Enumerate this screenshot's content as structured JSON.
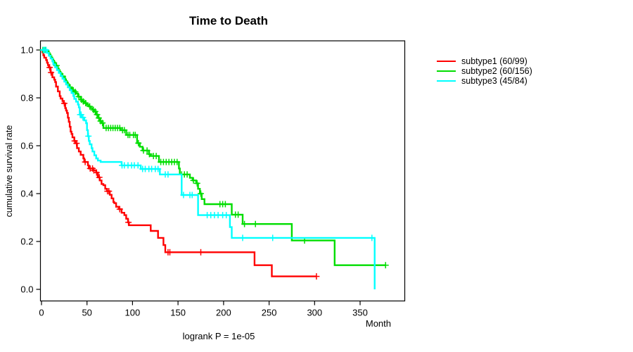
{
  "chart_data": {
    "type": "line",
    "subtype": "kaplan-meier-step-curves",
    "title": "Time to Death",
    "xlabel": "Month",
    "ylabel": "cumulative survival rate",
    "annotation": "logrank P = 1e-05",
    "grid": false,
    "legend_position": "right-outside",
    "xlim": [
      0,
      398
    ],
    "ylim": [
      0.0,
      1.0
    ],
    "x_ticks": [
      0,
      50,
      100,
      150,
      200,
      250,
      300,
      350
    ],
    "y_ticks": [
      0.0,
      0.2,
      0.4,
      0.6,
      0.8,
      1.0
    ],
    "series": [
      {
        "name": "subtype1 (60/99)",
        "events": 60,
        "n": 99,
        "color": "#ff0000",
        "end_month": 302,
        "points": [
          [
            0,
            1.0
          ],
          [
            1,
            0.99
          ],
          [
            2,
            0.978
          ],
          [
            3,
            0.968
          ],
          [
            5,
            0.958
          ],
          [
            6,
            0.947
          ],
          [
            7,
            0.937
          ],
          [
            8,
            0.927
          ],
          [
            10,
            0.906
          ],
          [
            12,
            0.886
          ],
          [
            14,
            0.876
          ],
          [
            15,
            0.866
          ],
          [
            16,
            0.847
          ],
          [
            18,
            0.827
          ],
          [
            20,
            0.807
          ],
          [
            21,
            0.797
          ],
          [
            23,
            0.787
          ],
          [
            24,
            0.777
          ],
          [
            26,
            0.757
          ],
          [
            27,
            0.747
          ],
          [
            28,
            0.737
          ],
          [
            29,
            0.717
          ],
          [
            30,
            0.7
          ],
          [
            31,
            0.679
          ],
          [
            32,
            0.659
          ],
          [
            33,
            0.649
          ],
          [
            34,
            0.635
          ],
          [
            36,
            0.62
          ],
          [
            38,
            0.61
          ],
          [
            39,
            0.59
          ],
          [
            41,
            0.576
          ],
          [
            43,
            0.562
          ],
          [
            46,
            0.547
          ],
          [
            47,
            0.532
          ],
          [
            51,
            0.518
          ],
          [
            52,
            0.505
          ],
          [
            57,
            0.497
          ],
          [
            60,
            0.488
          ],
          [
            62,
            0.468
          ],
          [
            64,
            0.455
          ],
          [
            66,
            0.44
          ],
          [
            68,
            0.435
          ],
          [
            70,
            0.42
          ],
          [
            72,
            0.41
          ],
          [
            75,
            0.395
          ],
          [
            77,
            0.38
          ],
          [
            79,
            0.365
          ],
          [
            80,
            0.36
          ],
          [
            82,
            0.345
          ],
          [
            85,
            0.335
          ],
          [
            88,
            0.32
          ],
          [
            91,
            0.31
          ],
          [
            93,
            0.295
          ],
          [
            95,
            0.28
          ],
          [
            96,
            0.268
          ],
          [
            120,
            0.244
          ],
          [
            128,
            0.215
          ],
          [
            134,
            0.185
          ],
          [
            136,
            0.155
          ],
          [
            234,
            0.101
          ],
          [
            253,
            0.054
          ]
        ],
        "censor_months": [
          9,
          10.5,
          25,
          36.5,
          38.5,
          48,
          53.5,
          56,
          57.5,
          60.5,
          63.5,
          72.5,
          74,
          86,
          95.5,
          139,
          141,
          175,
          302
        ]
      },
      {
        "name": "subtype2 (60/156)",
        "events": 60,
        "n": 156,
        "color": "#00dd00",
        "end_month": 378,
        "points": [
          [
            0,
            1.0
          ],
          [
            6,
            0.994
          ],
          [
            8,
            0.987
          ],
          [
            9,
            0.981
          ],
          [
            10,
            0.974
          ],
          [
            11,
            0.968
          ],
          [
            12,
            0.961
          ],
          [
            13,
            0.955
          ],
          [
            14,
            0.948
          ],
          [
            15,
            0.942
          ],
          [
            16,
            0.935
          ],
          [
            17,
            0.929
          ],
          [
            18,
            0.922
          ],
          [
            19,
            0.916
          ],
          [
            20,
            0.909
          ],
          [
            21,
            0.903
          ],
          [
            22,
            0.896
          ],
          [
            23,
            0.89
          ],
          [
            25,
            0.883
          ],
          [
            26,
            0.877
          ],
          [
            27,
            0.87
          ],
          [
            28,
            0.864
          ],
          [
            29,
            0.857
          ],
          [
            30,
            0.851
          ],
          [
            31,
            0.844
          ],
          [
            33,
            0.838
          ],
          [
            34,
            0.831
          ],
          [
            36,
            0.825
          ],
          [
            38,
            0.818
          ],
          [
            40,
            0.805
          ],
          [
            43,
            0.792
          ],
          [
            45,
            0.785
          ],
          [
            47,
            0.778
          ],
          [
            50,
            0.771
          ],
          [
            52,
            0.764
          ],
          [
            54,
            0.757
          ],
          [
            56,
            0.75
          ],
          [
            58,
            0.743
          ],
          [
            60,
            0.73
          ],
          [
            62,
            0.716
          ],
          [
            64,
            0.703
          ],
          [
            66,
            0.695
          ],
          [
            68,
            0.674
          ],
          [
            87,
            0.665
          ],
          [
            93,
            0.645
          ],
          [
            105,
            0.611
          ],
          [
            108,
            0.596
          ],
          [
            111,
            0.58
          ],
          [
            118,
            0.565
          ],
          [
            120,
            0.557
          ],
          [
            129,
            0.532
          ],
          [
            151,
            0.505
          ],
          [
            152,
            0.48
          ],
          [
            163,
            0.466
          ],
          [
            166,
            0.455
          ],
          [
            170,
            0.443
          ],
          [
            172,
            0.42
          ],
          [
            174,
            0.4
          ],
          [
            176,
            0.377
          ],
          [
            179,
            0.356
          ],
          [
            209,
            0.312
          ],
          [
            221,
            0.273
          ],
          [
            275,
            0.204
          ],
          [
            322,
            0.101
          ]
        ],
        "censor_months": [
          1.5,
          3,
          4.5,
          16.5,
          23.5,
          31.5,
          35,
          37,
          41,
          44,
          46,
          48.5,
          53,
          57,
          59,
          61,
          63,
          65,
          67,
          71,
          73.5,
          76,
          78.5,
          81,
          83.5,
          86,
          89,
          91,
          95,
          97,
          101,
          103,
          106.5,
          112,
          116,
          118.5,
          123,
          126,
          131,
          134,
          137,
          140,
          143,
          146,
          149,
          154,
          157,
          160,
          167,
          171,
          175,
          196,
          199,
          202,
          213,
          216,
          223,
          235,
          289,
          378
        ]
      },
      {
        "name": "subtype3 (45/84)",
        "events": 45,
        "n": 84,
        "color": "#00ffff",
        "end_month": 366,
        "points": [
          [
            0,
            1.0
          ],
          [
            6,
            0.988
          ],
          [
            8,
            0.976
          ],
          [
            10,
            0.964
          ],
          [
            12,
            0.952
          ],
          [
            13,
            0.94
          ],
          [
            15,
            0.928
          ],
          [
            17,
            0.916
          ],
          [
            19,
            0.904
          ],
          [
            21,
            0.892
          ],
          [
            23,
            0.88
          ],
          [
            25,
            0.868
          ],
          [
            27,
            0.856
          ],
          [
            29,
            0.844
          ],
          [
            31,
            0.832
          ],
          [
            33,
            0.82
          ],
          [
            35,
            0.808
          ],
          [
            36,
            0.796
          ],
          [
            38,
            0.784
          ],
          [
            40,
            0.772
          ],
          [
            41,
            0.76
          ],
          [
            42,
            0.73
          ],
          [
            44,
            0.718
          ],
          [
            47,
            0.706
          ],
          [
            49,
            0.694
          ],
          [
            50,
            0.665
          ],
          [
            51,
            0.64
          ],
          [
            52,
            0.62
          ],
          [
            53,
            0.606
          ],
          [
            55,
            0.59
          ],
          [
            56,
            0.576
          ],
          [
            58,
            0.56
          ],
          [
            60,
            0.547
          ],
          [
            62,
            0.538
          ],
          [
            65,
            0.532
          ],
          [
            88,
            0.518
          ],
          [
            109,
            0.503
          ],
          [
            130,
            0.48
          ],
          [
            154,
            0.394
          ],
          [
            172,
            0.31
          ],
          [
            207,
            0.26
          ],
          [
            209,
            0.215
          ],
          [
            366,
            0.0
          ]
        ],
        "censor_months": [
          2,
          3.5,
          5,
          42.5,
          43.5,
          45.5,
          51.5,
          88.5,
          91,
          95,
          99,
          102,
          106,
          111,
          114,
          118,
          121,
          125,
          128,
          136,
          139,
          156,
          163,
          165.5,
          182,
          186,
          190,
          194,
          199,
          203,
          221,
          254,
          363
        ]
      }
    ]
  }
}
